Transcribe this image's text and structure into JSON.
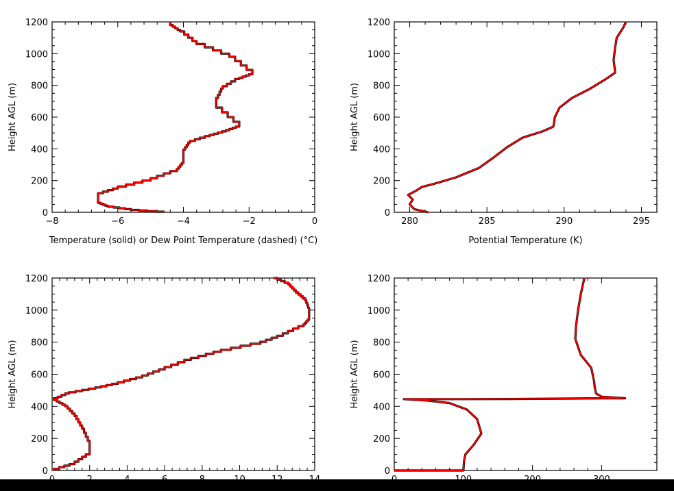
{
  "colors": {
    "background": "#ffffff",
    "axis": "#000000",
    "trace": "#ff0000",
    "trace_shadow": "#000000"
  },
  "chart_data": [
    {
      "type": "line",
      "xlabel": "Temperature (solid) or Dew Point Temperature (dashed) (°C)",
      "ylabel": "Height AGL (m)",
      "xlim": [
        -8,
        0
      ],
      "ylim": [
        0,
        1200
      ],
      "xticks": [
        "-8",
        "-6",
        "-4",
        "-2",
        "0"
      ],
      "yticks": [
        "0",
        "200",
        "400",
        "600",
        "800",
        "1000",
        "1200"
      ],
      "series": [
        {
          "step": true,
          "x": [
            -4.6,
            -5.6,
            -6.3,
            -6.6,
            -6.6,
            -6.0,
            -5.0,
            -4.2,
            -4.0,
            -4.0,
            -3.8,
            -3.2,
            -2.7,
            -2.3,
            -3.0,
            -3.0,
            -2.8,
            -2.3,
            -1.9,
            -2.6,
            -3.6,
            -4.1,
            -4.4,
            -4.4
          ],
          "y": [
            0,
            15,
            35,
            60,
            110,
            150,
            200,
            260,
            310,
            380,
            440,
            480,
            510,
            540,
            660,
            700,
            780,
            840,
            870,
            980,
            1060,
            1140,
            1180,
            1200
          ]
        }
      ]
    },
    {
      "type": "line",
      "xlabel": "Potential Temperature (K)",
      "ylabel": "Height AGL (m)",
      "xlim": [
        279,
        296
      ],
      "ylim": [
        0,
        1200
      ],
      "xticks": [
        "280",
        "285",
        "290",
        "295"
      ],
      "yticks": [
        "0",
        "200",
        "400",
        "600",
        "800",
        "1000",
        "1200"
      ],
      "series": [
        {
          "step": false,
          "x": [
            281.2,
            280.3,
            280.0,
            280.2,
            279.9,
            280.4,
            280.8,
            281.6,
            283.0,
            284.5,
            285.5,
            286.3,
            287.3,
            288.6,
            289.3,
            289.4,
            289.7,
            290.5,
            291.7,
            292.7,
            293.3,
            293.2,
            293.3,
            293.4,
            293.8,
            294.0
          ],
          "y": [
            0,
            20,
            50,
            80,
            110,
            135,
            160,
            180,
            220,
            280,
            350,
            410,
            470,
            510,
            540,
            600,
            660,
            720,
            780,
            840,
            880,
            960,
            1040,
            1100,
            1160,
            1200
          ]
        }
      ]
    },
    {
      "type": "line",
      "xlabel": "",
      "ylabel": "Height AGL (m)",
      "xlim": [
        0,
        14
      ],
      "ylim": [
        0,
        1200
      ],
      "xticks": [
        "0",
        "2",
        "4",
        "6",
        "8",
        "10",
        "12",
        "14"
      ],
      "yticks": [
        "0",
        "200",
        "400",
        "600",
        "800",
        "1000",
        "1200"
      ],
      "series": [
        {
          "step": true,
          "x": [
            0.1,
            1.2,
            2.0,
            2.0,
            1.6,
            1.2,
            0.7,
            0.1,
            0.9,
            2.3,
            3.5,
            4.8,
            6.0,
            7.4,
            9.0,
            11.1,
            12.3,
            13.4,
            13.7,
            13.7,
            13.5,
            13.0,
            12.6,
            11.8
          ],
          "y": [
            0,
            40,
            100,
            160,
            260,
            340,
            400,
            440,
            480,
            510,
            540,
            580,
            630,
            690,
            740,
            790,
            840,
            900,
            940,
            1000,
            1060,
            1110,
            1160,
            1200
          ]
        }
      ]
    },
    {
      "type": "line",
      "xlabel": "",
      "ylabel": "Height AGL (m)",
      "xlim": [
        0,
        380
      ],
      "ylim": [
        0,
        1200
      ],
      "xticks": [
        "0",
        "100",
        "200",
        "300"
      ],
      "yticks": [
        "0",
        "200",
        "400",
        "600",
        "800",
        "1000",
        "1200"
      ],
      "series": [
        {
          "step": false,
          "x": [
            0,
            100,
            101,
            103,
            115,
            126,
            120,
            105,
            80,
            48,
            14,
            100,
            170,
            240,
            300,
            334,
            300,
            292,
            290,
            289,
            285,
            270,
            262,
            263,
            266,
            270,
            275
          ],
          "y": [
            0,
            0,
            60,
            100,
            160,
            230,
            320,
            380,
            420,
            436,
            445,
            445,
            446,
            448,
            450,
            450,
            460,
            480,
            520,
            560,
            640,
            720,
            820,
            900,
            1000,
            1100,
            1200
          ]
        }
      ]
    }
  ]
}
